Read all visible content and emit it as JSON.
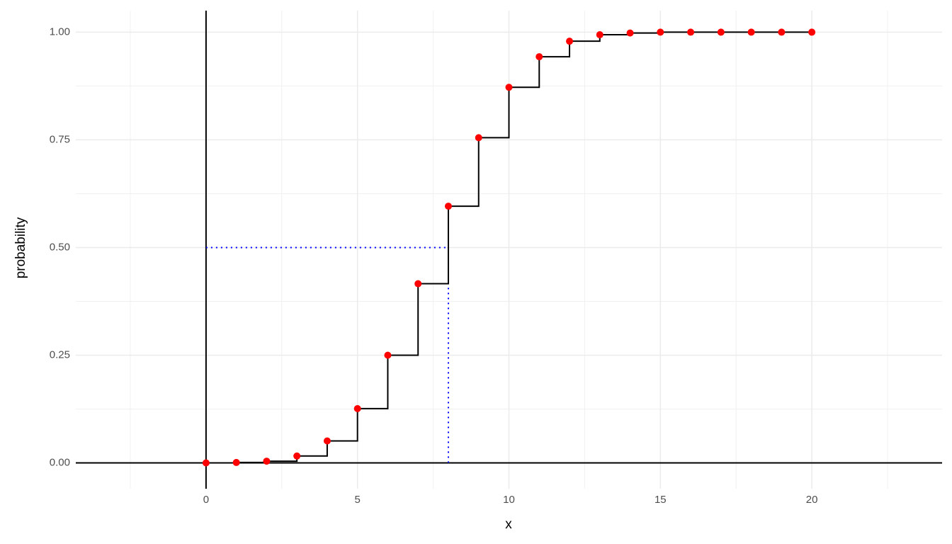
{
  "chart_data": {
    "type": "step",
    "x_label": "x",
    "y_label": "probability",
    "x": [
      0,
      1,
      2,
      3,
      4,
      5,
      6,
      7,
      8,
      9,
      10,
      11,
      12,
      13,
      14,
      15,
      16,
      17,
      18,
      19,
      20
    ],
    "values": [
      0,
      0.001,
      0.004,
      0.016,
      0.051,
      0.126,
      0.25,
      0.416,
      0.596,
      0.755,
      0.872,
      0.943,
      0.979,
      0.994,
      0.998,
      1,
      1,
      1,
      1,
      1,
      1
    ],
    "line_color": "#000000",
    "point_color": "#ff0000",
    "hline": 0,
    "vline": 0,
    "reference": {
      "x": 8,
      "y": 0.5,
      "color": "#0000ff"
    },
    "xlim": [
      -4.3,
      24.3
    ],
    "ylim": [
      -0.06,
      1.05
    ],
    "xticks": [
      0,
      5,
      10,
      15,
      20
    ],
    "yticks": [
      {
        "value": 0,
        "label": "0.00"
      },
      {
        "value": 0.25,
        "label": "0.25"
      },
      {
        "value": 0.5,
        "label": "0.50"
      },
      {
        "value": 0.75,
        "label": "0.75"
      },
      {
        "value": 1,
        "label": "1.00"
      }
    ],
    "grid": true
  }
}
